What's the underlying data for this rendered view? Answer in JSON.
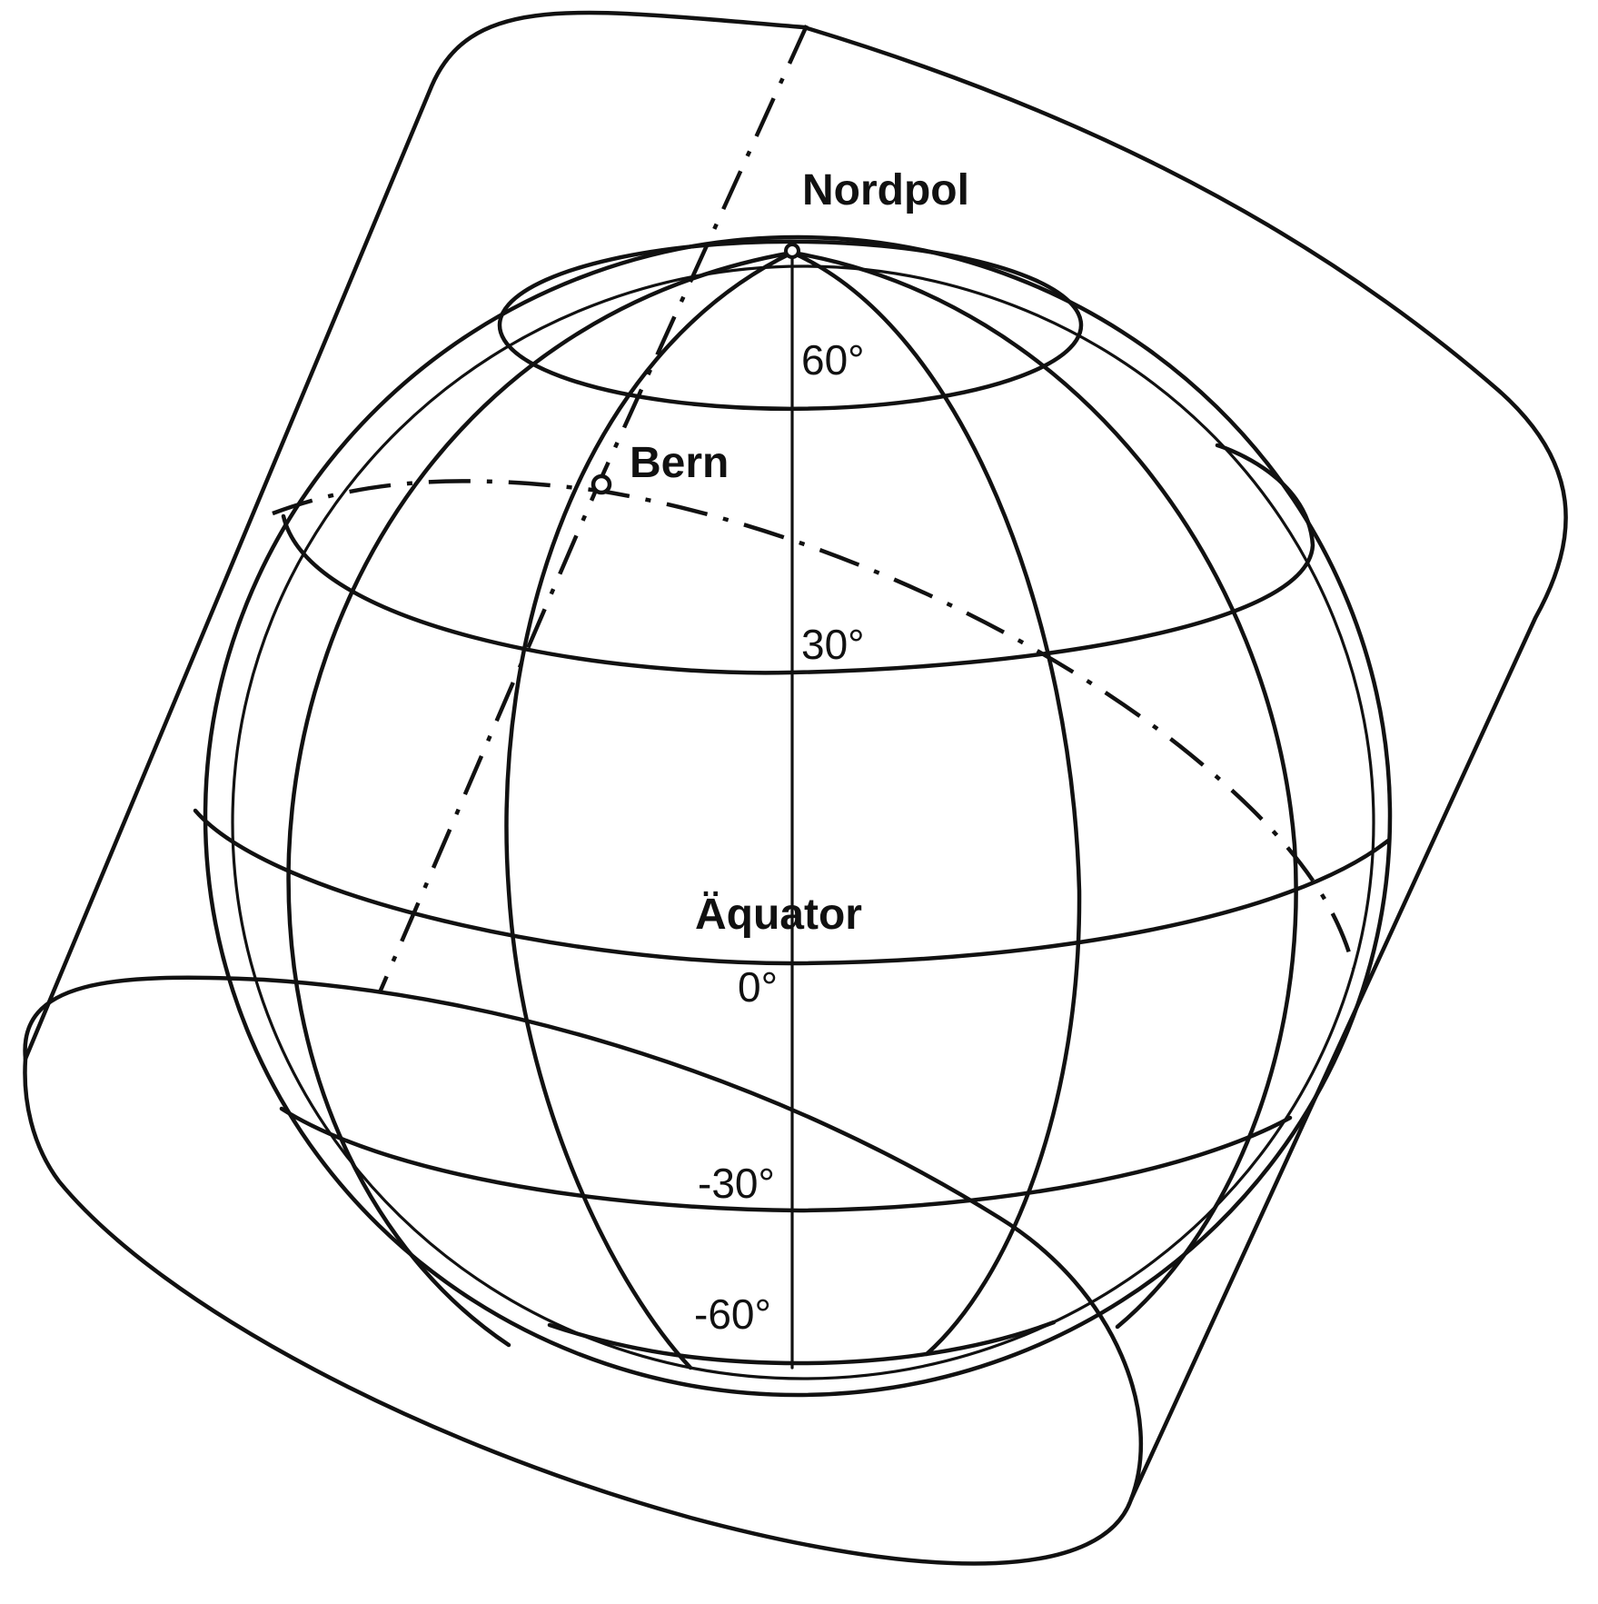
{
  "labels": {
    "north_pole": "Nordpol",
    "city": "Bern",
    "equator": "Äquator",
    "lat_60": "60°",
    "lat_30": "30°",
    "lat_0": "0°",
    "lat_minus_30": "-30°",
    "lat_minus_60": "-60°"
  },
  "colors": {
    "ink": "#111111",
    "paper": "#ffffff"
  }
}
